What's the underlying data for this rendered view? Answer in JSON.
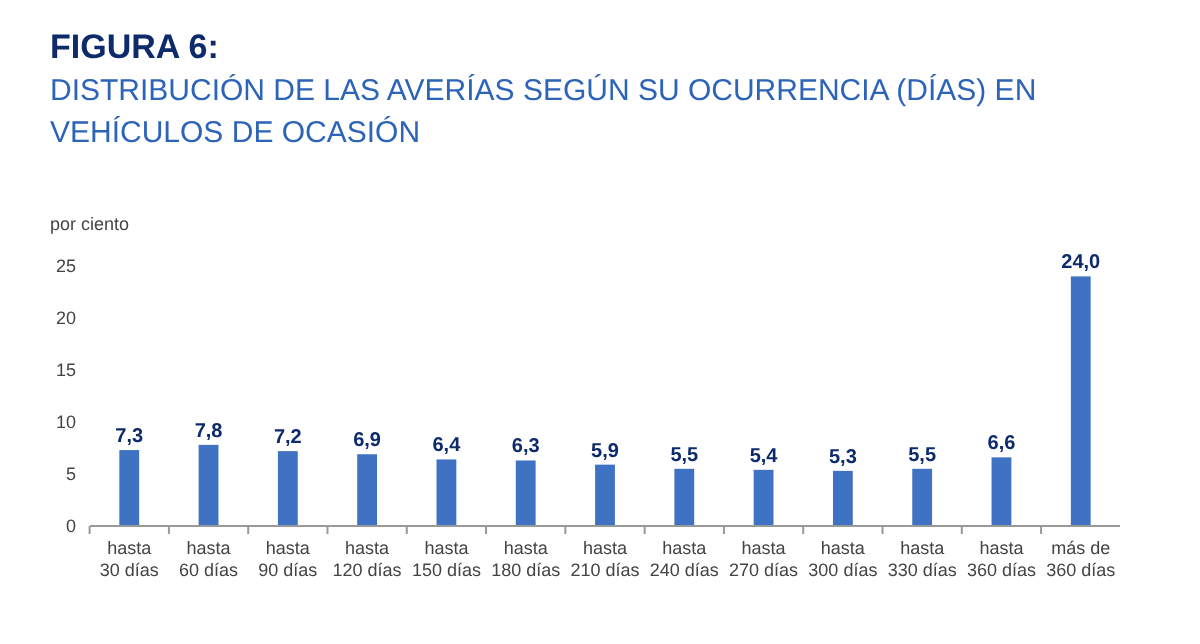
{
  "chart_data": {
    "type": "bar",
    "title": "FIGURA 6:",
    "subtitle": "DISTRIBUCIÓN DE LAS AVERÍAS SEGÚN SU OCURRENCIA (DÍAS) EN\nVEHÍCULOS DE OCASIÓN",
    "ylabel": "por ciento",
    "categories": [
      "hasta\n30 días",
      "hasta\n60 días",
      "hasta\n90 días",
      "hasta\n120 días",
      "hasta\n150 días",
      "hasta\n180 días",
      "hasta\n210 días",
      "hasta\n240 días",
      "hasta\n270 días",
      "hasta\n300 días",
      "hasta\n330 días",
      "hasta\n360 días",
      "más de\n360 días"
    ],
    "values": [
      7.3,
      7.8,
      7.2,
      6.9,
      6.4,
      6.3,
      5.9,
      5.5,
      5.4,
      5.3,
      5.5,
      6.6,
      24.0
    ],
    "value_labels": [
      "7,3",
      "7,8",
      "7,2",
      "6,9",
      "6,4",
      "6,3",
      "5,9",
      "5,5",
      "5,4",
      "5,3",
      "5,5",
      "6,6",
      "24,0"
    ],
    "color": "#3f72c2",
    "ylim": [
      0,
      25
    ],
    "yticks": [
      0,
      5,
      10,
      15,
      20,
      25
    ]
  }
}
